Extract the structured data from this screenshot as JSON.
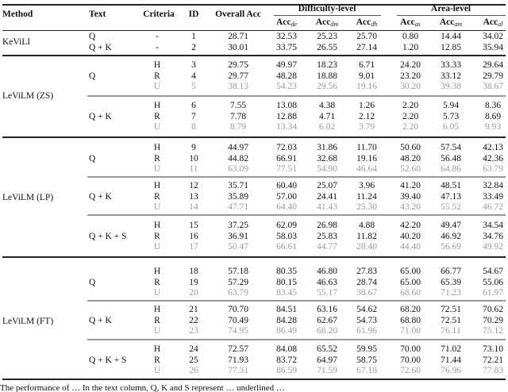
{
  "header": {
    "method": "Method",
    "text": "Text",
    "criteria": "Criteria",
    "id": "ID",
    "overall": "Overall Acc",
    "difficulty_group": "Difficulty-level",
    "area_group": "Area-level",
    "metrics": [
      {
        "label": "Acc",
        "sub": "de"
      },
      {
        "label": "Acc",
        "sub": "dm"
      },
      {
        "label": "Acc",
        "sub": "dh"
      },
      {
        "label": "Acc",
        "sub": "as"
      },
      {
        "label": "Acc",
        "sub": "am"
      },
      {
        "label": "Acc",
        "sub": "al"
      }
    ]
  },
  "groups": [
    {
      "method": "KeViLI",
      "blocks": [
        {
          "text": "",
          "rows": [
            {
              "textlabel": "Q",
              "criteria": "-",
              "id": "1",
              "overall": "28.71",
              "vals": [
                "32.53",
                "25.23",
                "25.70",
                "0.80",
                "14.44",
                "34.02"
              ]
            },
            {
              "textlabel": "Q + K",
              "criteria": "-",
              "id": "2",
              "overall": "30.01",
              "vals": [
                "33.75",
                "26.55",
                "27.14",
                "1.20",
                "12.85",
                "35.94"
              ]
            }
          ]
        }
      ]
    },
    {
      "method": "LeViLM (ZS)",
      "blocks": [
        {
          "text": "Q",
          "rows": [
            {
              "criteria": "H",
              "id": "3",
              "overall": "29.75",
              "vals": [
                "49.97",
                "18.23",
                "6.71",
                "24.20",
                "33.33",
                "29.64"
              ]
            },
            {
              "criteria": "R",
              "id": "4",
              "overall": "29.77",
              "vals": [
                "48.28",
                "18.88",
                "9.01",
                "23.20",
                "33.12",
                "29.79"
              ]
            },
            {
              "criteria": "U",
              "id": "5",
              "overall": "38.13",
              "vals": [
                "54.23",
                "29.56",
                "19.16",
                "30.20",
                "39.38",
                "38.67"
              ]
            }
          ]
        },
        {
          "text": "Q + K",
          "rows": [
            {
              "criteria": "H",
              "id": "6",
              "overall": "7.55",
              "vals": [
                "13.08",
                "4.38",
                "1.26",
                "2.20",
                "5.94",
                "8.36"
              ]
            },
            {
              "criteria": "R",
              "id": "7",
              "overall": "7.78",
              "vals": [
                "12.88",
                "4.71",
                "2.12",
                "2.20",
                "5.73",
                "8.69"
              ]
            },
            {
              "criteria": "U",
              "id": "8",
              "overall": "8.79",
              "vals": [
                "13.34",
                "6.02",
                "3.79",
                "2.20",
                "6.05",
                "9.93"
              ]
            }
          ]
        }
      ]
    },
    {
      "method": "LeViLM (LP)",
      "blocks": [
        {
          "text": "Q",
          "rows": [
            {
              "criteria": "H",
              "id": "9",
              "overall": "44.97",
              "vals": [
                "72.03",
                "31.86",
                "11.70",
                "50.60",
                "57.54",
                "42.13"
              ]
            },
            {
              "criteria": "R",
              "id": "10",
              "overall": "44.82",
              "vals": [
                "66.91",
                "32.68",
                "19.16",
                "48.20",
                "56.48",
                "42.36"
              ]
            },
            {
              "criteria": "U",
              "id": "11",
              "overall": "63.09",
              "vals": [
                "77.51",
                "54.90",
                "46.64",
                "52.60",
                "64.86",
                "63.79"
              ]
            }
          ]
        },
        {
          "text": "Q + K",
          "rows": [
            {
              "criteria": "H",
              "id": "12",
              "overall": "35.71",
              "vals": [
                "60.40",
                "25.07",
                "3.96",
                "41.20",
                "48.51",
                "32.84"
              ]
            },
            {
              "criteria": "R",
              "id": "13",
              "overall": "35.89",
              "vals": [
                "57.00",
                "24.41",
                "11.24",
                "39.40",
                "47.13",
                "33.49"
              ]
            },
            {
              "criteria": "U",
              "id": "14",
              "overall": "47.71",
              "vals": [
                "64.40",
                "41.43",
                "25.30",
                "43.20",
                "55.52",
                "46.72"
              ]
            }
          ]
        },
        {
          "text": "Q + K + S",
          "rows": [
            {
              "criteria": "H",
              "id": "15",
              "overall": "37.25",
              "vals": [
                "62.09",
                "26.98",
                "4.88",
                "42.20",
                "49.47",
                "34.54"
              ]
            },
            {
              "criteria": "R",
              "id": "16",
              "overall": "36.91",
              "vals": [
                "58.03",
                "25.83",
                "11.82",
                "40.20",
                "46.92",
                "34.76"
              ]
            },
            {
              "criteria": "U",
              "id": "17",
              "overall": "50.47",
              "vals": [
                "66.61",
                "44.77",
                "28.40",
                "44.40",
                "56.69",
                "49.92"
              ]
            }
          ]
        }
      ]
    },
    {
      "method": "LeViLM (FT)",
      "blocks": [
        {
          "text": "Q",
          "rows": [
            {
              "criteria": "H",
              "id": "18",
              "overall": "57.18",
              "vals": [
                "80.35",
                "46.80",
                "27.83",
                "65.00",
                "66.77",
                "54.67"
              ]
            },
            {
              "criteria": "R",
              "id": "19",
              "overall": "57.29",
              "vals": [
                "80.15",
                "46.63",
                "28.74",
                "65.00",
                "65.39",
                "55.06"
              ]
            },
            {
              "criteria": "U",
              "id": "20",
              "overall": "63.79",
              "vals": [
                "83.45",
                "55.17",
                "38.67",
                "68.60",
                "71.23",
                "61.97"
              ]
            }
          ]
        },
        {
          "text": "Q + K",
          "rows": [
            {
              "criteria": "H",
              "id": "21",
              "overall": "70.70",
              "vals": [
                "84.51",
                "63.16",
                "54.62",
                "68.20",
                "72.51",
                "70.62"
              ]
            },
            {
              "criteria": "R",
              "id": "22",
              "overall": "70.49",
              "vals": [
                "84.28",
                "62.67",
                "54.73",
                "68.80",
                "72.51",
                "70.29"
              ]
            },
            {
              "criteria": "U",
              "id": "23",
              "overall": "74.95",
              "vals": [
                "86.49",
                "68.20",
                "61.96",
                "71.00",
                "76.11",
                "75.12"
              ]
            }
          ]
        },
        {
          "text": "Q + K + S",
          "rows": [
            {
              "criteria": "H",
              "id": "24",
              "overall": "72.57",
              "vals": [
                "84.08",
                "65.52",
                "59.95",
                "70.00",
                "71.02",
                "73.10"
              ]
            },
            {
              "criteria": "R",
              "id": "25",
              "overall": "71.93",
              "vals": [
                "83.72",
                "64.97",
                "58.75",
                "70.00",
                "71.44",
                "72.21"
              ]
            },
            {
              "criteria": "U",
              "id": "26",
              "overall": "77.31",
              "vals": [
                "86.59",
                "71.59",
                "67.18",
                "72.60",
                "76.96",
                "77.83"
              ]
            }
          ]
        }
      ]
    }
  ],
  "caption": "The performance of … In the text column, Q, K and S represent … underlined …"
}
